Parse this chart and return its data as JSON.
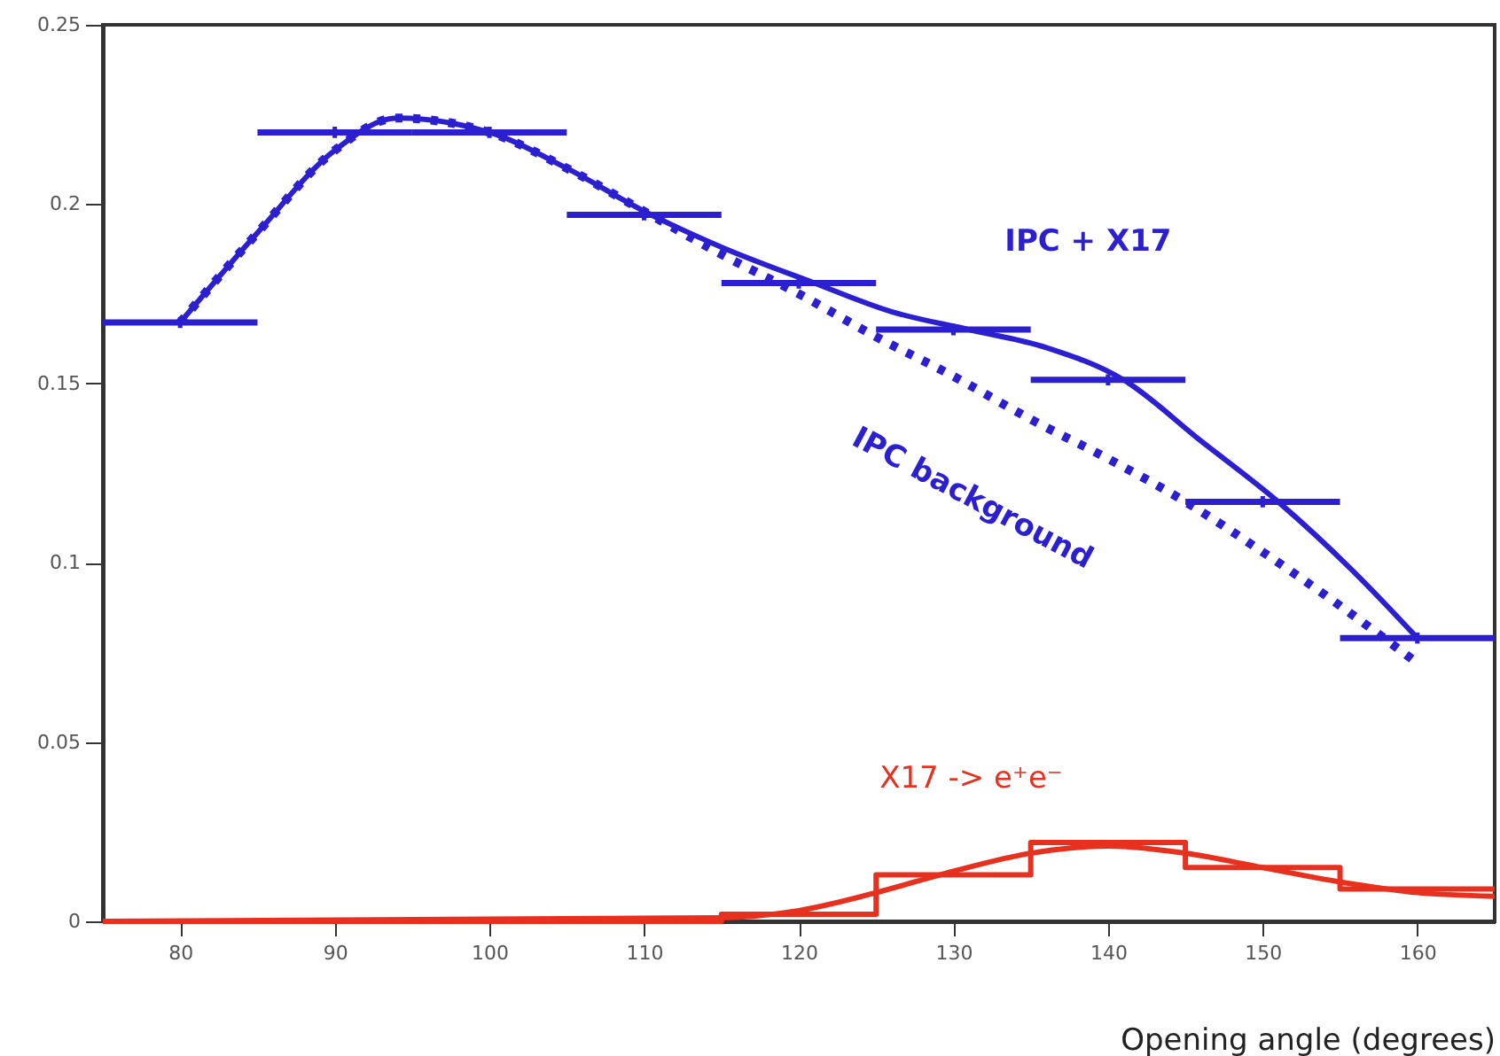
{
  "chart_data": {
    "type": "line",
    "xlabel": "Opening angle (degrees)",
    "xlim": [
      75,
      165
    ],
    "xticks": [
      80,
      90,
      100,
      110,
      120,
      130,
      140,
      150,
      160
    ],
    "ylim": [
      0,
      0.25
    ],
    "yticks": [
      0,
      0.05,
      0.1,
      0.15,
      0.2,
      0.25
    ],
    "series": [
      {
        "type": "scatter",
        "marker": "cross",
        "color": "#2b1fcf",
        "x": [
          80,
          90,
          100,
          110,
          120,
          130,
          140,
          150,
          160
        ],
        "values": [
          0.167,
          0.22,
          0.22,
          0.197,
          0.178,
          0.165,
          0.151,
          0.117,
          0.079
        ],
        "xerrors": [
          5,
          5,
          5,
          5,
          5,
          5,
          5,
          5,
          5
        ]
      },
      {
        "name": "IPC + X17",
        "color": "#2b1fcf",
        "line_style": "solid",
        "x": [
          80,
          85,
          90,
          94,
          100,
          105,
          110,
          115,
          121,
          126,
          131,
          136,
          141,
          146,
          151,
          156,
          160
        ],
        "values": [
          0.167,
          0.192,
          0.215,
          0.224,
          0.22,
          0.21,
          0.198,
          0.188,
          0.178,
          0.17,
          0.165,
          0.16,
          0.151,
          0.134,
          0.117,
          0.097,
          0.079
        ]
      },
      {
        "name": "IPC background",
        "color": "#2b1fcf",
        "line_style": "dotted",
        "x": [
          80,
          85,
          90,
          94,
          100,
          105,
          110,
          115,
          120,
          125,
          130,
          135,
          140,
          145,
          150,
          155,
          160
        ],
        "values": [
          0.167,
          0.192,
          0.215,
          0.224,
          0.22,
          0.21,
          0.198,
          0.186,
          0.175,
          0.163,
          0.152,
          0.14,
          0.129,
          0.117,
          0.103,
          0.088,
          0.072
        ]
      },
      {
        "type": "step",
        "color": "#e8301f",
        "line_style": "solid",
        "x": [
          75,
          85,
          95,
          105,
          115,
          125,
          135,
          145,
          155,
          165
        ],
        "values": [
          0,
          0,
          0,
          0,
          0.002,
          0.013,
          0.022,
          0.015,
          0.009,
          0.009
        ]
      },
      {
        "name": "X17 -> e⁺e⁻",
        "color": "#e8301f",
        "line_style": "solid",
        "x": [
          75,
          115,
          120,
          125,
          130,
          135,
          140,
          145,
          150,
          155,
          160,
          165
        ],
        "values": [
          0,
          0.001,
          0.003,
          0.008,
          0.014,
          0.019,
          0.021,
          0.019,
          0.015,
          0.011,
          0.008,
          0.007
        ]
      }
    ]
  }
}
